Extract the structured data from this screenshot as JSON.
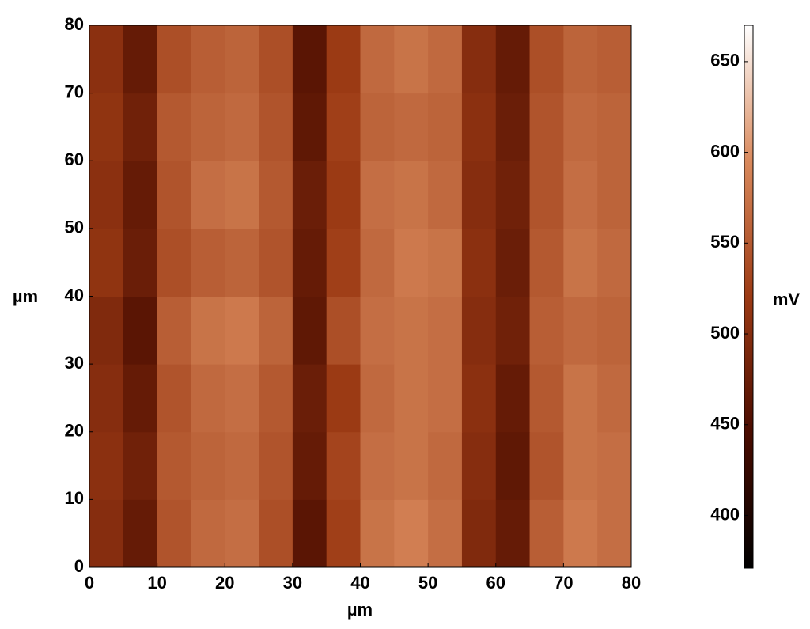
{
  "chart_data": {
    "type": "heatmap",
    "x_label": "µm",
    "y_label": "µm",
    "colorbar_label": "mV",
    "xlim": [
      0,
      80
    ],
    "ylim": [
      0,
      80
    ],
    "xticks": [
      0,
      10,
      20,
      30,
      40,
      50,
      60,
      70,
      80
    ],
    "yticks": [
      0,
      10,
      20,
      30,
      40,
      50,
      60,
      70,
      80
    ],
    "zlim": [
      371,
      670
    ],
    "zticks": [
      400,
      450,
      500,
      550,
      600,
      650
    ],
    "colormap": [
      "#000000",
      "#4a0c00",
      "#9c3a14",
      "#d9895c",
      "#ffffff"
    ],
    "z": [
      [
        500,
        470,
        545,
        565,
        570,
        540,
        460,
        525,
        575,
        585,
        570,
        495,
        470,
        555,
        580,
        570
      ],
      [
        505,
        480,
        550,
        560,
        565,
        545,
        470,
        530,
        570,
        575,
        565,
        500,
        465,
        545,
        575,
        570
      ],
      [
        500,
        470,
        545,
        565,
        570,
        550,
        475,
        520,
        565,
        575,
        570,
        505,
        470,
        550,
        575,
        565
      ],
      [
        495,
        460,
        555,
        575,
        580,
        560,
        465,
        540,
        570,
        575,
        570,
        500,
        480,
        555,
        565,
        560
      ],
      [
        510,
        475,
        540,
        555,
        560,
        545,
        470,
        525,
        565,
        580,
        575,
        505,
        475,
        550,
        575,
        565
      ],
      [
        505,
        470,
        545,
        570,
        575,
        550,
        475,
        520,
        570,
        575,
        565,
        500,
        480,
        545,
        570,
        560
      ],
      [
        510,
        480,
        550,
        560,
        565,
        545,
        465,
        525,
        560,
        565,
        560,
        505,
        475,
        545,
        565,
        560
      ],
      [
        505,
        470,
        540,
        555,
        560,
        540,
        460,
        520,
        565,
        575,
        565,
        500,
        470,
        540,
        560,
        555
      ]
    ]
  }
}
